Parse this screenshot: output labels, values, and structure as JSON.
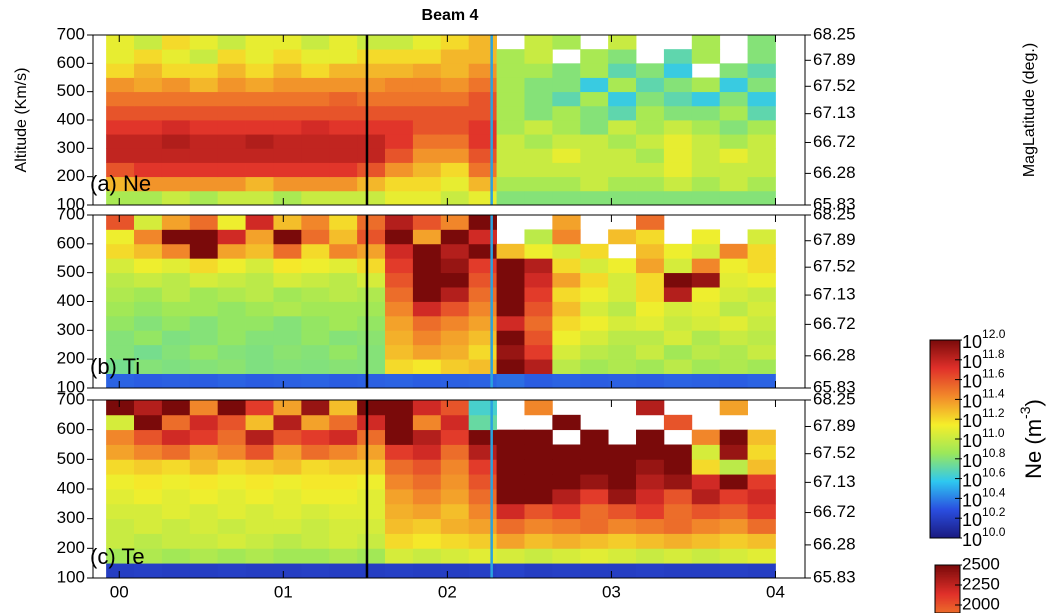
{
  "chart_data": {
    "type": "heatmap",
    "title": "Beam 4",
    "y_label": "Altitude (Km/s)",
    "y2_label": "MagLatitude (deg.)",
    "xlim": [
      -0.16,
      4.18
    ],
    "xticks": [
      {
        "value": 0,
        "label": "00"
      },
      {
        "value": 1,
        "label": "01"
      },
      {
        "value": 2,
        "label": "02"
      },
      {
        "value": 3,
        "label": "03"
      },
      {
        "value": 4,
        "label": "04"
      }
    ],
    "ylim": [
      100,
      700
    ],
    "yticks": [
      100,
      200,
      300,
      400,
      500,
      600,
      700
    ],
    "y2lim": [
      65.83,
      68.25
    ],
    "y2ticks": [
      65.83,
      66.28,
      66.72,
      67.13,
      67.52,
      67.89,
      68.25
    ],
    "x_bins": [
      -0.08,
      0.09,
      0.26,
      0.43,
      0.6,
      0.77,
      0.94,
      1.11,
      1.28,
      1.45,
      1.62,
      1.79,
      1.96,
      2.13,
      2.3,
      2.47,
      2.64,
      2.81,
      2.98,
      3.15,
      3.32,
      3.49,
      3.66,
      3.83,
      4.0
    ],
    "y_bins": [
      100,
      150,
      200,
      250,
      300,
      350,
      400,
      450,
      500,
      550,
      600,
      650,
      700
    ],
    "colormap": [
      "#1a1a80",
      "#2a4ee0",
      "#2ec8f0",
      "#9be85a",
      "#f5ee2a",
      "#f28a2a",
      "#e0302a",
      "#7a0a0a"
    ],
    "markers": [
      {
        "x": 1.51,
        "color": "#000000"
      },
      {
        "x": 2.27,
        "color": "#29a3e0"
      }
    ],
    "panels": [
      {
        "name": "(a) Ne",
        "color_range": [
          10,
          12
        ],
        "values": [
          [
            10.9,
            10.9,
            11.0,
            10.9,
            11.0,
            11.0,
            10.9,
            11.0,
            11.0,
            11.0,
            11.1,
            11.1,
            11.0,
            11.1,
            10.8,
            10.8,
            10.8,
            10.8,
            10.8,
            10.8,
            10.8,
            10.8,
            10.8,
            10.8
          ],
          [
            11.3,
            11.4,
            11.4,
            11.4,
            11.4,
            11.3,
            11.4,
            11.4,
            11.4,
            11.3,
            11.2,
            11.2,
            11.1,
            11.3,
            10.9,
            10.9,
            10.9,
            11.0,
            10.9,
            10.9,
            11.0,
            10.9,
            11.0,
            10.9
          ],
          [
            11.6,
            11.7,
            11.7,
            11.7,
            11.7,
            11.7,
            11.7,
            11.7,
            11.7,
            11.6,
            11.4,
            11.3,
            11.2,
            11.5,
            11.0,
            11.0,
            11.0,
            11.0,
            11.0,
            11.0,
            11.1,
            11.0,
            11.0,
            11.0
          ],
          [
            11.8,
            11.8,
            11.8,
            11.8,
            11.8,
            11.8,
            11.8,
            11.8,
            11.8,
            11.8,
            11.6,
            11.4,
            11.4,
            11.6,
            11.0,
            11.0,
            11.1,
            11.0,
            11.0,
            10.9,
            11.1,
            11.0,
            11.1,
            11.0
          ],
          [
            11.8,
            11.8,
            11.85,
            11.8,
            11.8,
            11.85,
            11.8,
            11.8,
            11.8,
            11.8,
            11.7,
            11.5,
            11.5,
            11.7,
            11.0,
            10.9,
            11.0,
            11.0,
            10.9,
            11.0,
            11.1,
            11.0,
            10.9,
            11.0
          ],
          [
            11.7,
            11.7,
            11.75,
            11.7,
            11.7,
            11.7,
            11.7,
            11.75,
            11.7,
            11.7,
            11.7,
            11.6,
            11.6,
            11.7,
            10.9,
            11.0,
            10.9,
            10.8,
            11.0,
            10.9,
            11.0,
            10.9,
            10.8,
            10.9
          ],
          [
            11.6,
            11.6,
            11.6,
            11.6,
            11.6,
            11.6,
            11.6,
            11.6,
            11.6,
            11.6,
            11.6,
            11.6,
            11.6,
            11.6,
            10.9,
            10.8,
            10.9,
            10.8,
            10.7,
            10.9,
            10.8,
            10.8,
            10.9,
            10.7
          ],
          [
            11.5,
            11.5,
            11.5,
            11.5,
            11.5,
            11.5,
            11.5,
            11.5,
            11.55,
            11.5,
            11.5,
            11.5,
            11.5,
            11.6,
            10.9,
            10.8,
            10.7,
            10.9,
            10.6,
            10.8,
            10.7,
            10.6,
            10.8,
            10.6
          ],
          [
            11.4,
            11.35,
            11.4,
            11.3,
            11.4,
            11.35,
            11.4,
            11.4,
            11.4,
            11.4,
            11.45,
            11.45,
            11.4,
            11.5,
            10.9,
            10.8,
            10.8,
            10.6,
            10.9,
            10.7,
            10.8,
            10.9,
            10.6,
            10.8
          ],
          [
            11.2,
            11.3,
            11.2,
            11.2,
            11.3,
            11.2,
            11.3,
            11.2,
            11.3,
            11.3,
            11.3,
            11.35,
            11.3,
            11.4,
            10.9,
            10.9,
            10.8,
            10.9,
            10.7,
            10.8,
            10.6,
            null,
            10.8,
            10.7
          ],
          [
            11.1,
            11.2,
            11.1,
            11.0,
            11.2,
            11.1,
            11.2,
            11.1,
            11.1,
            11.2,
            11.2,
            11.2,
            11.3,
            11.3,
            10.9,
            11.0,
            null,
            10.9,
            10.8,
            null,
            10.7,
            10.9,
            null,
            10.8
          ],
          [
            11.1,
            11.0,
            11.2,
            11.1,
            11.0,
            11.1,
            11.1,
            11.0,
            11.1,
            11.0,
            11.0,
            11.1,
            11.2,
            11.3,
            null,
            11.0,
            10.9,
            null,
            11.0,
            null,
            null,
            10.9,
            null,
            10.8
          ]
        ]
      },
      {
        "name": "(b) Ti",
        "color_range": [
          0,
          2500
        ],
        "values": [
          [
            420,
            400,
            410,
            400,
            420,
            400,
            410,
            420,
            400,
            410,
            420,
            400,
            410,
            420,
            450,
            400,
            420,
            400,
            410,
            400,
            420,
            410,
            400,
            420
          ],
          [
            950,
            1000,
            980,
            1000,
            1020,
            980,
            1000,
            990,
            1010,
            1000,
            1500,
            1450,
            1550,
            1600,
            2500,
            2300,
            1200,
            1100,
            1150,
            1100,
            1200,
            1100,
            1150,
            1100
          ],
          [
            1000,
            950,
            1000,
            1050,
            1000,
            980,
            1020,
            1000,
            1050,
            1000,
            1600,
            1700,
            1650,
            1500,
            2400,
            2100,
            1300,
            1200,
            1150,
            1250,
            1100,
            1200,
            1150,
            1250
          ],
          [
            1000,
            1050,
            980,
            1000,
            1050,
            1000,
            1000,
            1050,
            1000,
            1020,
            1650,
            1800,
            1700,
            1600,
            2500,
            2000,
            1400,
            1300,
            1200,
            1200,
            1300,
            1150,
            1250,
            1200
          ],
          [
            1050,
            1000,
            1050,
            1000,
            1050,
            1050,
            1000,
            1050,
            1100,
            1050,
            1700,
            1900,
            1800,
            1700,
            2200,
            1900,
            1500,
            1400,
            1300,
            1350,
            1250,
            1300,
            1350,
            1250
          ],
          [
            1100,
            1050,
            1100,
            1100,
            1050,
            1100,
            1150,
            1100,
            1100,
            1100,
            1800,
            2200,
            2000,
            1800,
            2500,
            2000,
            1600,
            1300,
            1200,
            1400,
            1300,
            1350,
            1200,
            1300
          ],
          [
            1150,
            1100,
            1200,
            1100,
            1150,
            1200,
            1100,
            1150,
            1200,
            1150,
            1900,
            2500,
            2300,
            1900,
            2500,
            2100,
            1500,
            1400,
            1300,
            1500,
            2300,
            1400,
            1300,
            1250
          ],
          [
            1200,
            1250,
            1200,
            1300,
            1250,
            1200,
            1300,
            1250,
            1200,
            1300,
            2000,
            2500,
            2500,
            2000,
            2500,
            2200,
            1700,
            1500,
            1300,
            1500,
            2500,
            2400,
            1350,
            1400
          ],
          [
            1300,
            1400,
            1350,
            1500,
            1400,
            1300,
            1450,
            1400,
            1350,
            1500,
            2100,
            2500,
            2400,
            2100,
            2500,
            2300,
            1500,
            1300,
            1400,
            1700,
            1300,
            1800,
            1400,
            1500
          ],
          [
            1500,
            1600,
            1800,
            2500,
            1700,
            1600,
            1900,
            1500,
            1800,
            1700,
            2200,
            2500,
            2300,
            2500,
            1600,
            1400,
            1300,
            1500,
            null,
            1600,
            1400,
            1300,
            1800,
            1500
          ],
          [
            1400,
            1800,
            2500,
            2500,
            2200,
            1700,
            2500,
            1900,
            1600,
            2000,
            2500,
            1700,
            2500,
            2200,
            null,
            1200,
            1800,
            null,
            1600,
            1500,
            null,
            1400,
            null,
            1300
          ],
          [
            2000,
            1300,
            1700,
            1900,
            1400,
            2200,
            1600,
            1800,
            1500,
            1900,
            2300,
            2000,
            1800,
            2500,
            null,
            null,
            1700,
            null,
            null,
            1900,
            null,
            null,
            null,
            null
          ]
        ]
      },
      {
        "name": "(c) Te",
        "color_range": [
          0,
          2500
        ],
        "values": [
          [
            250,
            260,
            250,
            250,
            260,
            250,
            250,
            260,
            250,
            250,
            260,
            250,
            250,
            260,
            280,
            250,
            260,
            250,
            250,
            260,
            250,
            250,
            260,
            250
          ],
          [
            1100,
            1150,
            1100,
            1150,
            1100,
            1150,
            1100,
            1100,
            1150,
            1100,
            1300,
            1250,
            1300,
            1350,
            1300,
            1250,
            1300,
            1350,
            1300,
            1250,
            1300,
            1250,
            1300,
            1350
          ],
          [
            1250,
            1200,
            1250,
            1250,
            1300,
            1250,
            1200,
            1250,
            1300,
            1250,
            1500,
            1450,
            1500,
            1550,
            1700,
            1600,
            1650,
            1600,
            1550,
            1600,
            1650,
            1600,
            1550,
            1600
          ],
          [
            1250,
            1300,
            1250,
            1300,
            1250,
            1300,
            1300,
            1250,
            1300,
            1300,
            1600,
            1550,
            1650,
            1700,
            1900,
            1800,
            1850,
            1900,
            1800,
            1850,
            1900,
            1800,
            1750,
            1900
          ],
          [
            1300,
            1300,
            1350,
            1300,
            1350,
            1300,
            1350,
            1300,
            1350,
            1350,
            1650,
            1700,
            1600,
            1800,
            2200,
            2000,
            2100,
            1900,
            2000,
            2100,
            1900,
            2000,
            1950,
            2100
          ],
          [
            1350,
            1400,
            1350,
            1400,
            1350,
            1400,
            1350,
            1400,
            1400,
            1350,
            1700,
            1800,
            1700,
            1900,
            2500,
            2500,
            2300,
            2100,
            2400,
            2200,
            2000,
            2300,
            2100,
            2200
          ],
          [
            1400,
            1450,
            1400,
            1450,
            1400,
            1450,
            1400,
            1450,
            1450,
            1400,
            1800,
            1900,
            1750,
            2000,
            2500,
            2500,
            2500,
            2400,
            2500,
            2300,
            2400,
            2200,
            2500,
            2100
          ],
          [
            1500,
            1550,
            1500,
            1600,
            1500,
            1550,
            1600,
            1500,
            1550,
            1550,
            1900,
            2000,
            1800,
            2100,
            2500,
            2500,
            2500,
            2500,
            2500,
            2400,
            2500,
            1500,
            1200,
            1600
          ],
          [
            1700,
            1800,
            1900,
            1700,
            1800,
            2000,
            1700,
            1900,
            1800,
            1700,
            2100,
            2200,
            1900,
            2300,
            2500,
            2500,
            2500,
            2500,
            2500,
            2500,
            2500,
            1300,
            2400,
            1500
          ],
          [
            1800,
            2000,
            2200,
            2100,
            1900,
            2300,
            2000,
            2100,
            2200,
            1900,
            2500,
            2300,
            2100,
            2500,
            2500,
            2500,
            null,
            2500,
            null,
            2500,
            null,
            1800,
            2500,
            1600
          ],
          [
            1300,
            2500,
            1900,
            2200,
            2000,
            1600,
            2300,
            1700,
            1900,
            2200,
            2500,
            1800,
            2200,
            900,
            null,
            null,
            2500,
            null,
            null,
            null,
            2000,
            null,
            null,
            null
          ],
          [
            2500,
            2300,
            2500,
            1800,
            2500,
            2100,
            1700,
            2400,
            1600,
            2500,
            2500,
            2200,
            2000,
            800,
            null,
            1800,
            null,
            null,
            null,
            2300,
            null,
            null,
            1700,
            null
          ]
        ]
      }
    ],
    "colorbars": [
      {
        "label": "Ne (m",
        "label_sup": "-3",
        "label_end": ")",
        "tick_base": "10",
        "ylim": [
          10,
          12
        ],
        "yticks": [
          {
            "value": 10,
            "label": "10.0"
          },
          10.2,
          10.4,
          10.6,
          10.8,
          {
            "value": 11,
            "label": "11.0"
          },
          11.2,
          11.4,
          11.6,
          11.8,
          {
            "value": 12,
            "label": "12.0"
          }
        ]
      },
      {
        "ylim": [
          1900,
          2500
        ],
        "yticks": [
          2000,
          2250,
          2500
        ]
      }
    ]
  }
}
